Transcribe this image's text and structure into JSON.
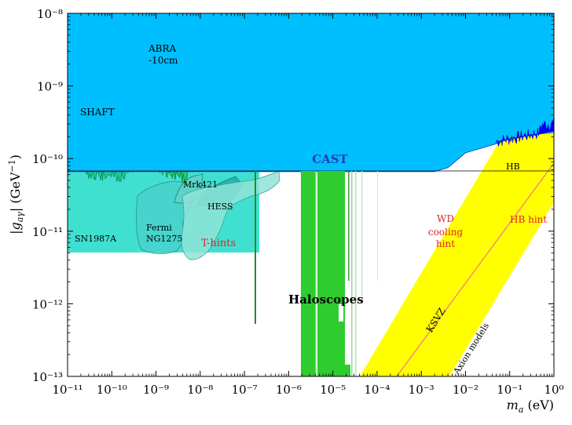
{
  "chart_data": {
    "type": "area",
    "xlabel": "m_a (eV)",
    "ylabel": "|g_aγ| (GeV⁻¹)",
    "x_scale": "log",
    "y_scale": "log",
    "xlim": [
      1e-11,
      1
    ],
    "ylim": [
      1e-13,
      1e-08
    ],
    "x_ticks": [
      "10⁻¹¹",
      "10⁻¹⁰",
      "10⁻⁹",
      "10⁻⁸",
      "10⁻⁷",
      "10⁻⁶",
      "10⁻⁵",
      "10⁻⁴",
      "10⁻³",
      "10⁻²",
      "10⁻¹",
      "10⁰"
    ],
    "y_ticks": [
      "10⁻¹³",
      "10⁻¹²",
      "10⁻¹¹",
      "10⁻¹⁰",
      "10⁻⁹",
      "10⁻⁸"
    ],
    "grid": false,
    "regions": [
      {
        "label": "CAST",
        "color": "#00bfff",
        "boundary": [
          [
            1e-11,
            6.6e-11
          ],
          [
            0.002,
            6.6e-11
          ],
          [
            0.004,
            7.5e-11
          ],
          [
            0.01,
            1.2e-10
          ],
          [
            0.05,
            1.6e-10
          ],
          [
            0.1,
            1.9e-10
          ],
          [
            0.3,
            2.1e-10
          ],
          [
            1,
            2.3e-10
          ]
        ]
      },
      {
        "label": "SN1987A",
        "color": "#40e0d0",
        "boundary": [
          [
            1e-11,
            5.3e-12
          ],
          [
            4e-10,
            5.3e-12
          ]
        ]
      },
      {
        "label": "SHAFT",
        "color": "#1ec896",
        "boundary": [
          [
            1.2e-11,
            2.2e-10
          ],
          [
            5e-11,
            6e-11
          ],
          [
            4e-10,
            8.5e-11
          ]
        ]
      },
      {
        "label": "ABRA\n-10cm",
        "color": "#22cc66",
        "boundary": [
          [
            4e-10,
            2.2e-10
          ],
          [
            3e-09,
            7e-11
          ],
          [
            1e-08,
            1.6e-10
          ]
        ]
      },
      {
        "label": "Fermi\nNG1275",
        "color": "#48d1cc"
      },
      {
        "label": "Mrk421",
        "color": "#20b2aa"
      },
      {
        "label": "HESS",
        "color": "#20b2aa"
      },
      {
        "label": "T-hints",
        "color": "#e32222"
      },
      {
        "label": "Haloscopes",
        "color": "#2ecc2e"
      },
      {
        "label": "HB",
        "color": "#000000",
        "value": 6.6e-11
      },
      {
        "label": "WD\ncooling\nhint",
        "color": "#e32222"
      },
      {
        "label": "HB hint",
        "color": "#e32222"
      },
      {
        "label": "KSVZ",
        "color": "#f08080"
      },
      {
        "label": "Axion models",
        "color": "#ffff00",
        "band": {
          "lower_start": [
            5e-05,
            1e-13
          ],
          "upper_end": [
            1,
            2e-10
          ],
          "width_decades": 1.3
        }
      }
    ]
  }
}
